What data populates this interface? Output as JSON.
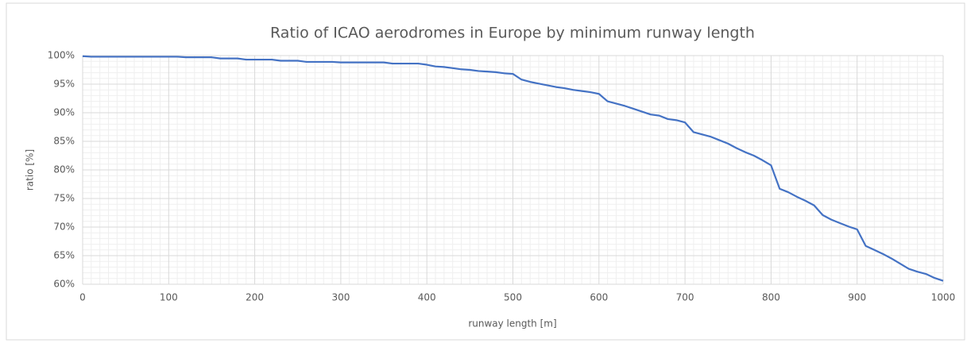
{
  "chart_data": {
    "type": "line",
    "title": "Ratio of ICAO aerodromes in Europe by minimum runway length",
    "xlabel": "runway length [m]",
    "ylabel": "ratio [%]",
    "x": [
      0,
      10,
      20,
      30,
      40,
      50,
      60,
      70,
      80,
      90,
      100,
      110,
      120,
      130,
      140,
      150,
      160,
      170,
      180,
      190,
      200,
      210,
      220,
      230,
      240,
      250,
      260,
      270,
      280,
      290,
      300,
      310,
      320,
      330,
      340,
      350,
      360,
      370,
      380,
      390,
      400,
      410,
      420,
      430,
      440,
      450,
      460,
      470,
      480,
      490,
      500,
      510,
      520,
      530,
      540,
      550,
      560,
      570,
      580,
      590,
      600,
      610,
      620,
      630,
      640,
      650,
      660,
      670,
      680,
      690,
      700,
      710,
      720,
      730,
      740,
      750,
      760,
      770,
      780,
      790,
      800,
      810,
      820,
      830,
      840,
      850,
      860,
      870,
      880,
      890,
      900,
      910,
      920,
      930,
      940,
      950,
      960,
      970,
      980,
      990,
      1000
    ],
    "series": [
      {
        "name": "ratio",
        "color": "#4472c4",
        "values": [
          99.9,
          99.8,
          99.8,
          99.8,
          99.8,
          99.8,
          99.8,
          99.8,
          99.8,
          99.8,
          99.8,
          99.8,
          99.7,
          99.7,
          99.7,
          99.7,
          99.5,
          99.5,
          99.5,
          99.3,
          99.3,
          99.3,
          99.3,
          99.1,
          99.1,
          99.1,
          98.9,
          98.9,
          98.9,
          98.9,
          98.8,
          98.8,
          98.8,
          98.8,
          98.8,
          98.8,
          98.6,
          98.6,
          98.6,
          98.6,
          98.4,
          98.1,
          98.0,
          97.8,
          97.6,
          97.5,
          97.3,
          97.2,
          97.1,
          96.9,
          96.8,
          95.8,
          95.4,
          95.1,
          94.8,
          94.5,
          94.3,
          94.0,
          93.8,
          93.6,
          93.3,
          92.0,
          91.6,
          91.2,
          90.7,
          90.2,
          89.7,
          89.5,
          88.9,
          88.7,
          88.3,
          86.6,
          86.2,
          85.8,
          85.2,
          84.6,
          83.8,
          83.1,
          82.5,
          81.7,
          80.8,
          76.7,
          76.1,
          75.3,
          74.6,
          73.8,
          72.1,
          71.3,
          70.7,
          70.1,
          69.6,
          66.7,
          66.0,
          65.3,
          64.5,
          63.6,
          62.7,
          62.2,
          61.8,
          61.1,
          60.6
        ]
      }
    ],
    "xlim": [
      0,
      1000
    ],
    "xticks": [
      0,
      100,
      200,
      300,
      400,
      500,
      600,
      700,
      800,
      900,
      1000
    ],
    "ylim": [
      60,
      100
    ],
    "yticks": [
      {
        "value": 60,
        "label": "60%"
      },
      {
        "value": 65,
        "label": "65%"
      },
      {
        "value": 70,
        "label": "70%"
      },
      {
        "value": 75,
        "label": "75%"
      },
      {
        "value": 80,
        "label": "80%"
      },
      {
        "value": 85,
        "label": "85%"
      },
      {
        "value": 90,
        "label": "90%"
      },
      {
        "value": 95,
        "label": "95%"
      },
      {
        "value": 100,
        "label": "100%"
      }
    ],
    "grid": true
  }
}
